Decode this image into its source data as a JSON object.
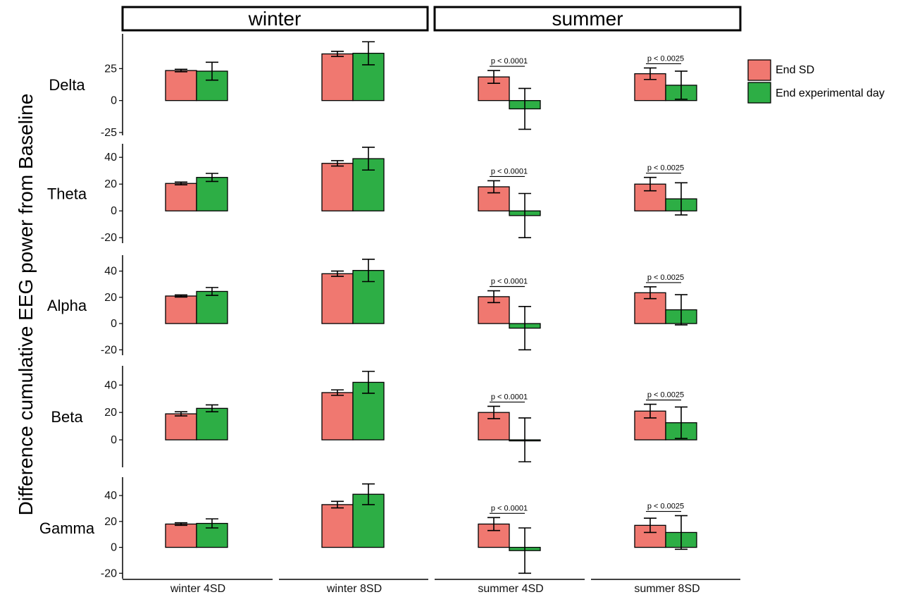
{
  "chart_data": {
    "type": "bar",
    "ylabel": "Difference cumulative EEG power from Baseline",
    "facets": [
      "winter",
      "summer"
    ],
    "categories": [
      "winter 4SD",
      "winter 8SD",
      "summer 4SD",
      "summer 8SD"
    ],
    "legend": {
      "placement": "right",
      "entries": [
        {
          "label": "End SD",
          "color": "#F07870"
        },
        {
          "label": "End experimental day",
          "color": "#2DAE45"
        }
      ]
    },
    "annotations": [
      "p < 0.0001",
      "p < 0.0025"
    ],
    "panels": [
      {
        "name": "Delta",
        "ylim": [
          -25,
          50
        ],
        "yticks": [
          25,
          0,
          -25
        ],
        "ytick_labels": [
          "25",
          "0",
          "-25"
        ],
        "series": [
          {
            "name": "End SD",
            "values": [
              23.5,
              36.5,
              18.5,
              21
            ],
            "errors": [
              1,
              2,
              5,
              4.5
            ]
          },
          {
            "name": "End experimental day",
            "values": [
              23,
              37,
              -6.5,
              12
            ],
            "errors": [
              7,
              9,
              16,
              11
            ]
          }
        ],
        "pvalues": [
          "",
          "",
          "p < 0.0001",
          "p < 0.0025"
        ]
      },
      {
        "name": "Theta",
        "ylim": [
          -22,
          48
        ],
        "yticks": [
          40,
          20,
          0,
          -20
        ],
        "ytick_labels": [
          "40",
          "20",
          "0",
          "-20"
        ],
        "series": [
          {
            "name": "End SD",
            "values": [
              20.5,
              35.5,
              18,
              20
            ],
            "errors": [
              1,
              2,
              4.5,
              5
            ]
          },
          {
            "name": "End experimental day",
            "values": [
              25,
              39,
              -3.5,
              9
            ],
            "errors": [
              3,
              8.5,
              16.5,
              12
            ]
          }
        ],
        "pvalues": [
          "",
          "",
          "p < 0.0001",
          "p < 0.0025"
        ]
      },
      {
        "name": "Alpha",
        "ylim": [
          -22,
          50
        ],
        "yticks": [
          40,
          20,
          0,
          -20
        ],
        "ytick_labels": [
          "40",
          "20",
          "0",
          "-20"
        ],
        "series": [
          {
            "name": "End SD",
            "values": [
              21,
              38,
              20.5,
              23.5
            ],
            "errors": [
              0.8,
              2,
              4.5,
              4.5
            ]
          },
          {
            "name": "End experimental day",
            "values": [
              24.5,
              40.5,
              -3.5,
              10.5
            ],
            "errors": [
              3,
              8.5,
              16.5,
              11.5
            ]
          }
        ],
        "pvalues": [
          "",
          "",
          "p < 0.0001",
          "p < 0.0025"
        ]
      },
      {
        "name": "Beta",
        "ylim": [
          -18,
          52
        ],
        "yticks": [
          40,
          20,
          0
        ],
        "ytick_labels": [
          "40",
          "20",
          "0"
        ],
        "series": [
          {
            "name": "End SD",
            "values": [
              19,
              34.5,
              20,
              21
            ],
            "errors": [
              1.5,
              2,
              4.5,
              5
            ]
          },
          {
            "name": "End experimental day",
            "values": [
              23,
              42,
              0,
              12.5
            ],
            "errors": [
              2.5,
              8,
              16,
              11.5
            ]
          }
        ],
        "pvalues": [
          "",
          "",
          "p < 0.0001",
          "p < 0.0025"
        ]
      },
      {
        "name": "Gamma",
        "ylim": [
          -22,
          52
        ],
        "yticks": [
          40,
          20,
          0,
          -20
        ],
        "ytick_labels": [
          "40",
          "20",
          "0",
          "-20"
        ],
        "series": [
          {
            "name": "End SD",
            "values": [
              18,
              33,
              18,
              17
            ],
            "errors": [
              1,
              2.5,
              5,
              5.5
            ]
          },
          {
            "name": "End experimental day",
            "values": [
              18.5,
              41,
              -2.5,
              11.5
            ],
            "errors": [
              3.5,
              8,
              17.5,
              13
            ]
          }
        ],
        "pvalues": [
          "",
          "",
          "p < 0.0001",
          "p < 0.0025"
        ]
      }
    ]
  }
}
